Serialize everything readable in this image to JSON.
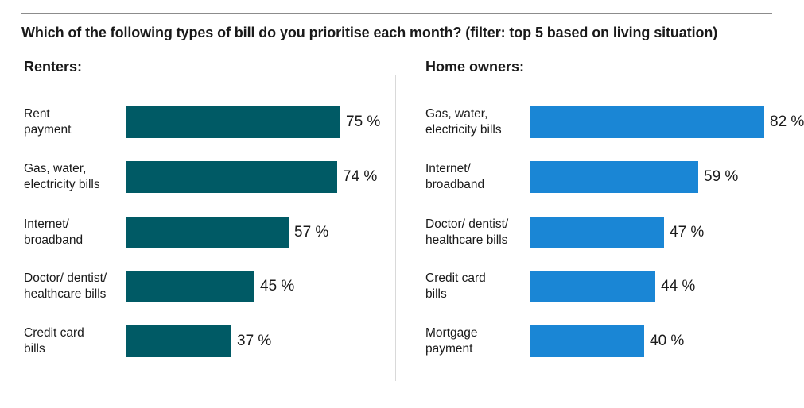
{
  "title": "Which of the following types of bill do you prioritise each month? (filter: top 5 based on living situation)",
  "colors": {
    "renters": "#005a65",
    "home_owners": "#1a86d5"
  },
  "chart_data": [
    {
      "type": "bar",
      "orientation": "horizontal",
      "title": "Renters:",
      "unit": "%",
      "categories": [
        [
          "Rent",
          "payment"
        ],
        [
          "Gas, water,",
          "electricity bills"
        ],
        [
          "Internet/",
          "broadband"
        ],
        [
          "Doctor/ dentist/",
          "healthcare bills"
        ],
        [
          "Credit card",
          "bills"
        ]
      ],
      "values": [
        75,
        74,
        57,
        45,
        37
      ],
      "value_labels": [
        "75 %",
        "74 %",
        "57 %",
        "45 %",
        "37 %"
      ]
    },
    {
      "type": "bar",
      "orientation": "horizontal",
      "title": "Home owners:",
      "unit": "%",
      "categories": [
        [
          "Gas, water,",
          "electricity bills"
        ],
        [
          "Internet/",
          "broadband"
        ],
        [
          "Doctor/ dentist/",
          "healthcare bills"
        ],
        [
          "Credit card",
          "bills"
        ],
        [
          "Mortgage",
          "payment"
        ]
      ],
      "values": [
        82,
        59,
        47,
        44,
        40
      ],
      "value_labels": [
        "82 %",
        "59 %",
        "47 %",
        "44 %",
        "40 %"
      ]
    }
  ]
}
